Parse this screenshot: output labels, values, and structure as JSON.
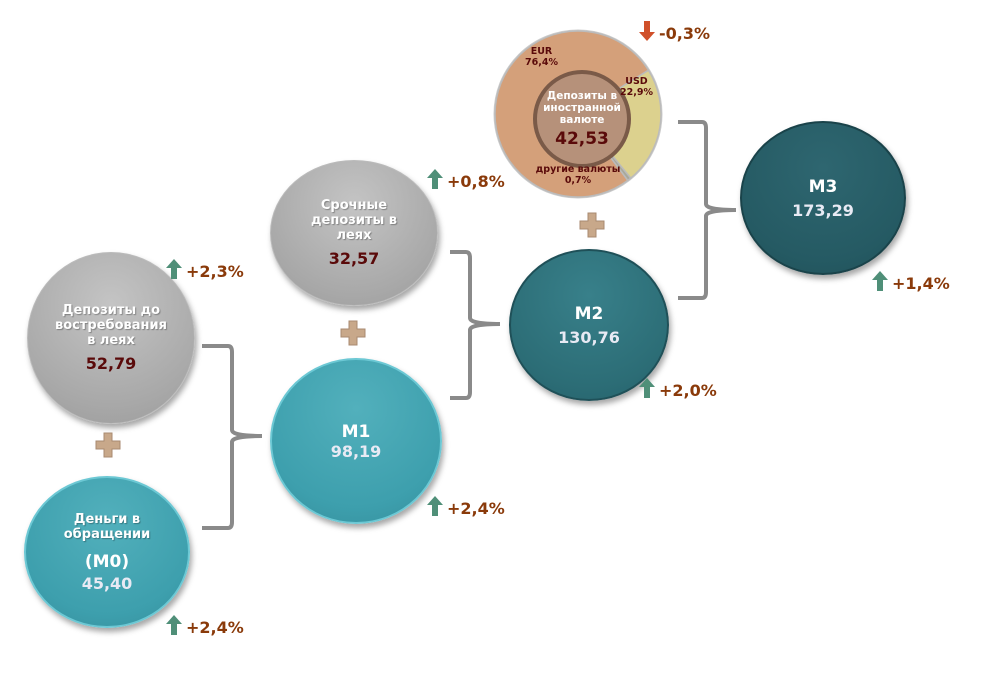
{
  "nodes": {
    "demand": {
      "label": "Депозиты до востребования в леях",
      "value": "52,79",
      "change": "+2,3%"
    },
    "m0": {
      "label": "Деньги в обращении",
      "code": "(M0)",
      "value": "45,40",
      "change": "+2,4%"
    },
    "time": {
      "label": "Срочные депозиты в леях",
      "value": "32,57",
      "change": "+0,8%"
    },
    "m1": {
      "label": "M1",
      "value": "98,19",
      "change": "+2,4%"
    },
    "m2": {
      "label": "M2",
      "value": "130,76",
      "change": "+2,0%"
    },
    "m3": {
      "label": "M3",
      "value": "173,29",
      "change": "+1,4%"
    },
    "fx": {
      "label": "Депозиты в иностранной валюте",
      "value": "42,53",
      "change": "-0,3%"
    }
  },
  "chart_data": {
    "type": "pie",
    "title": "Депозиты в иностранной валюте",
    "slices": [
      {
        "name": "EUR",
        "value": 76.4,
        "label": "76,4%",
        "color": "#d4a07a"
      },
      {
        "name": "USD",
        "value": 22.9,
        "label": "22,9%",
        "color": "#dcd18e"
      },
      {
        "name": "другие валюты",
        "value": 0.7,
        "label": "0,7%",
        "color": "#a8a89a"
      }
    ]
  },
  "colors": {
    "up": "#4f8f78",
    "down": "#d0502a",
    "plus": "#c8a88a",
    "bracket": "#8a8a8a"
  }
}
